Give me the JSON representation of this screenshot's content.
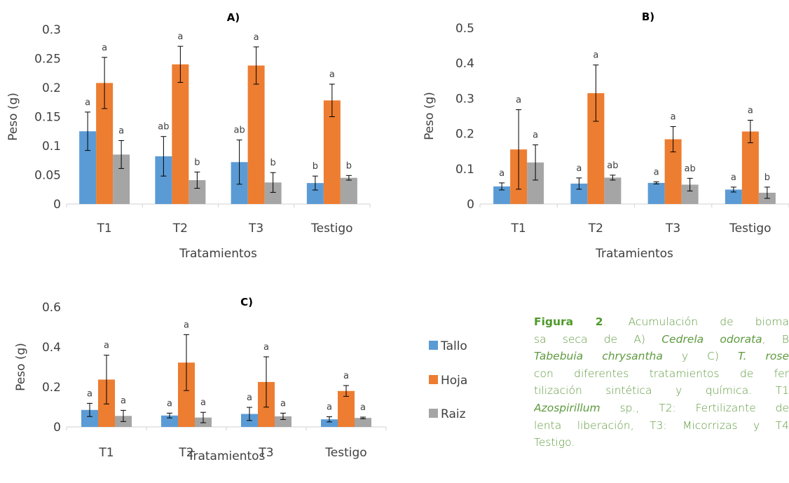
{
  "chart_data": [
    {
      "type": "bar",
      "title": "A)",
      "xlabel": "Tratamientos",
      "ylabel": "Peso (g)",
      "ylim": [
        0,
        0.3
      ],
      "yticks": [
        "0",
        "0.05",
        "0.1",
        "0.15",
        "0.2",
        "0.25",
        "0.3"
      ],
      "categories": [
        "T1",
        "T2",
        "T3",
        "Testigo"
      ],
      "series": [
        {
          "name": "Tallo",
          "values": [
            0.125,
            0.082,
            0.072,
            0.036
          ],
          "errors": [
            0.033,
            0.034,
            0.038,
            0.012
          ],
          "letters": [
            "a",
            "ab",
            "ab",
            "b"
          ]
        },
        {
          "name": "Hoja",
          "values": [
            0.208,
            0.24,
            0.238,
            0.178
          ],
          "errors": [
            0.044,
            0.031,
            0.032,
            0.028
          ],
          "letters": [
            "a",
            "a",
            "a",
            "a"
          ]
        },
        {
          "name": "Raiz",
          "values": [
            0.085,
            0.041,
            0.037,
            0.045
          ],
          "errors": [
            0.024,
            0.014,
            0.017,
            0.004
          ],
          "letters": [
            "a",
            "b",
            "b",
            "b"
          ]
        }
      ]
    },
    {
      "type": "bar",
      "title": "B)",
      "xlabel": "Tratamientos",
      "ylabel": "Peso (g)",
      "ylim": [
        0,
        0.5
      ],
      "yticks": [
        "0",
        "0.1",
        "0.2",
        "0.3",
        "0.4",
        "0.5"
      ],
      "categories": [
        "T1",
        "T2",
        "T3",
        "Testigo"
      ],
      "series": [
        {
          "name": "Tallo",
          "values": [
            0.05,
            0.058,
            0.06,
            0.041
          ],
          "errors": [
            0.01,
            0.016,
            0.003,
            0.007
          ],
          "letters": [
            "a",
            "a",
            "a",
            "a"
          ]
        },
        {
          "name": "Hoja",
          "values": [
            0.155,
            0.315,
            0.184,
            0.206
          ],
          "errors": [
            0.113,
            0.08,
            0.036,
            0.032
          ],
          "letters": [
            "a",
            "a",
            "a",
            "a"
          ]
        },
        {
          "name": "Raiz",
          "values": [
            0.118,
            0.075,
            0.055,
            0.032
          ],
          "errors": [
            0.05,
            0.007,
            0.018,
            0.016
          ],
          "letters": [
            "a",
            "ab",
            "ab",
            "b"
          ]
        }
      ]
    },
    {
      "type": "bar",
      "title": "C)",
      "xlabel": "Tratamientos",
      "ylabel": "Peso (g)",
      "ylim": [
        0,
        0.6
      ],
      "yticks": [
        "0",
        "0.2",
        "0.4",
        "0.6"
      ],
      "categories": [
        "T1",
        "T2",
        "T3",
        "Testigo"
      ],
      "series": [
        {
          "name": "Tallo",
          "values": [
            0.085,
            0.057,
            0.065,
            0.038
          ],
          "errors": [
            0.033,
            0.012,
            0.033,
            0.013
          ],
          "letters": [
            "a",
            "a",
            "a",
            "a"
          ]
        },
        {
          "name": "Hoja",
          "values": [
            0.237,
            0.322,
            0.225,
            0.18
          ],
          "errors": [
            0.122,
            0.14,
            0.126,
            0.027
          ],
          "letters": [
            "a",
            "a",
            "a",
            "a"
          ]
        },
        {
          "name": "Raiz",
          "values": [
            0.055,
            0.047,
            0.053,
            0.045
          ],
          "errors": [
            0.028,
            0.026,
            0.016,
            0.004
          ],
          "letters": [
            "a",
            "a",
            "a",
            "a"
          ]
        }
      ]
    }
  ],
  "legend": {
    "placement": "right of chart C",
    "items": [
      {
        "name": "Tallo",
        "color": "#5b9bd5"
      },
      {
        "name": "Hoja",
        "color": "#ed7d31"
      },
      {
        "name": "Raiz",
        "color": "#a5a5a5"
      }
    ]
  },
  "colors": {
    "Tallo": "#5b9bd5",
    "Hoja": "#ed7d31",
    "Raiz": "#a5a5a5",
    "axis": "#d9d9d9",
    "text": "#404040",
    "caption": "#5e9a3e"
  },
  "caption": {
    "label": "Figura 2",
    "line1": ". Acumulación de bioma",
    "line2_a": "sa seca de A) ",
    "line2_b": "Cedrela odorata",
    "line2_c": ", B",
    "line3_a": "Tabebuia chrysantha",
    "line3_b": " y C) ",
    "line3_c": "T. rose",
    "line4": "con diferentes tratamientos de fer",
    "line5": "tilización sintética y química. T1",
    "line6_a": "Azospirillum",
    "line6_b": " sp., T2: Fertilizante de",
    "line7": "lenta liberación, T3: Micorrizas y T4",
    "line8": "Testigo."
  }
}
